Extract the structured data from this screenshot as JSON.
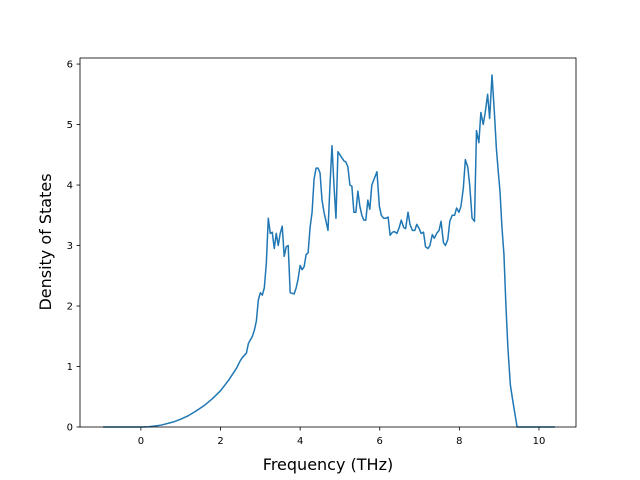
{
  "chart_data": {
    "type": "line",
    "xlabel": "Frequency (THz)",
    "ylabel": "Density of States",
    "xlim": [
      -1.53,
      10.93
    ],
    "ylim": [
      0,
      6.1
    ],
    "xticks": [
      0,
      2,
      4,
      6,
      8,
      10
    ],
    "yticks": [
      0,
      1,
      2,
      3,
      4,
      5,
      6
    ],
    "series": [
      {
        "color": "#1f77b4",
        "x": [
          -0.95,
          0,
          0.2,
          0.5,
          0.8,
          1.0,
          1.2,
          1.4,
          1.6,
          1.8,
          2.0,
          2.2,
          2.4,
          2.5,
          2.55,
          2.65,
          2.7,
          2.8,
          2.85,
          2.9,
          2.95,
          3.0,
          3.05,
          3.1,
          3.15,
          3.2,
          3.25,
          3.3,
          3.35,
          3.4,
          3.45,
          3.5,
          3.55,
          3.6,
          3.65,
          3.7,
          3.75,
          3.85,
          3.9,
          3.95,
          4.0,
          4.05,
          4.1,
          4.15,
          4.2,
          4.25,
          4.3,
          4.35,
          4.4,
          4.45,
          4.5,
          4.55,
          4.6,
          4.65,
          4.7,
          4.75,
          4.8,
          4.85,
          4.9,
          4.95,
          5.0,
          5.05,
          5.1,
          5.15,
          5.2,
          5.25,
          5.3,
          5.35,
          5.4,
          5.45,
          5.5,
          5.55,
          5.6,
          5.65,
          5.7,
          5.75,
          5.8,
          5.93,
          5.99,
          6.04,
          6.1,
          6.15,
          6.21,
          6.26,
          6.32,
          6.37,
          6.43,
          6.49,
          6.54,
          6.6,
          6.65,
          6.71,
          6.76,
          6.82,
          6.88,
          6.93,
          6.99,
          7.04,
          7.1,
          7.15,
          7.21,
          7.26,
          7.32,
          7.37,
          7.43,
          7.49,
          7.54,
          7.6,
          7.65,
          7.71,
          7.76,
          7.82,
          7.88,
          7.93,
          7.99,
          8.04,
          8.1,
          8.15,
          8.21,
          8.26,
          8.32,
          8.38,
          8.43,
          8.49,
          8.54,
          8.6,
          8.65,
          8.71,
          8.76,
          8.82,
          8.88,
          8.93,
          8.98,
          9.02,
          9.07,
          9.12,
          9.17,
          9.22,
          9.28,
          9.35,
          9.45,
          9.6,
          10.4
        ],
        "values": [
          0,
          0,
          0.005,
          0.03,
          0.08,
          0.13,
          0.19,
          0.27,
          0.36,
          0.47,
          0.6,
          0.77,
          0.97,
          1.1,
          1.15,
          1.22,
          1.38,
          1.5,
          1.6,
          1.75,
          2.1,
          2.22,
          2.18,
          2.3,
          2.7,
          3.45,
          3.2,
          3.22,
          2.95,
          3.2,
          3.0,
          3.2,
          3.32,
          2.82,
          2.98,
          3.0,
          2.22,
          2.2,
          2.3,
          2.45,
          2.67,
          2.6,
          2.65,
          2.85,
          2.88,
          3.3,
          3.55,
          4.1,
          4.28,
          4.28,
          4.2,
          3.75,
          3.55,
          3.4,
          3.25,
          4.0,
          4.65,
          4.0,
          3.45,
          4.55,
          4.5,
          4.45,
          4.4,
          4.38,
          4.3,
          4.0,
          3.98,
          3.55,
          3.55,
          3.9,
          3.65,
          3.5,
          3.42,
          3.42,
          3.75,
          3.6,
          4.0,
          4.22,
          3.65,
          3.5,
          3.45,
          3.45,
          3.47,
          3.17,
          3.22,
          3.23,
          3.2,
          3.3,
          3.42,
          3.3,
          3.28,
          3.55,
          3.35,
          3.25,
          3.25,
          3.35,
          3.28,
          3.2,
          3.22,
          2.98,
          2.95,
          3.0,
          3.18,
          3.12,
          3.2,
          3.25,
          3.4,
          3.05,
          3.0,
          3.1,
          3.4,
          3.5,
          3.5,
          3.62,
          3.55,
          3.65,
          3.95,
          4.42,
          4.3,
          4.0,
          3.45,
          3.4,
          4.9,
          4.7,
          5.2,
          5.0,
          5.2,
          5.5,
          5.1,
          5.82,
          5.2,
          4.6,
          4.2,
          3.9,
          3.3,
          2.85,
          2.0,
          1.3,
          0.7,
          0.4,
          0,
          0,
          0
        ]
      }
    ]
  }
}
